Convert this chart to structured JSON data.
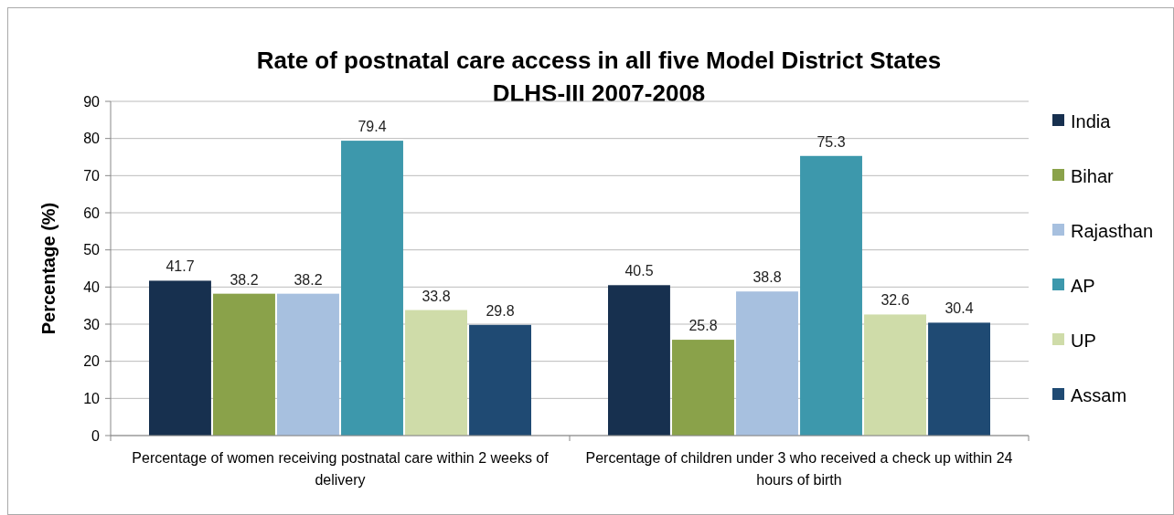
{
  "chart_data": {
    "type": "bar",
    "title": "Rate of postnatal care access in all five Model District States",
    "subtitle": "DLHS-III 2007-2008",
    "ylabel": "Percentage (%)",
    "categories": [
      "Percentage of women receiving postnatal care within 2 weeks of delivery",
      "Percentage of children under 3 who received a check up within 24 hours of birth"
    ],
    "series": [
      {
        "name": "India",
        "color": "#17304f",
        "values": [
          41.7,
          40.5
        ]
      },
      {
        "name": "Bihar",
        "color": "#8aa24a",
        "values": [
          38.2,
          25.8
        ]
      },
      {
        "name": "Rajasthan",
        "color": "#a7c0df",
        "values": [
          38.2,
          38.8
        ]
      },
      {
        "name": "AP",
        "color": "#3d98ac",
        "values": [
          79.4,
          75.3
        ]
      },
      {
        "name": "UP",
        "color": "#cfdca9",
        "values": [
          33.8,
          32.6
        ]
      },
      {
        "name": "Assam",
        "color": "#1f4a73",
        "values": [
          29.8,
          30.4
        ]
      }
    ],
    "ylim": [
      0,
      90
    ],
    "yticks": [
      0,
      10,
      20,
      30,
      40,
      50,
      60,
      70,
      80,
      90
    ],
    "grid": "y",
    "legend": "right",
    "data_labels": true
  }
}
